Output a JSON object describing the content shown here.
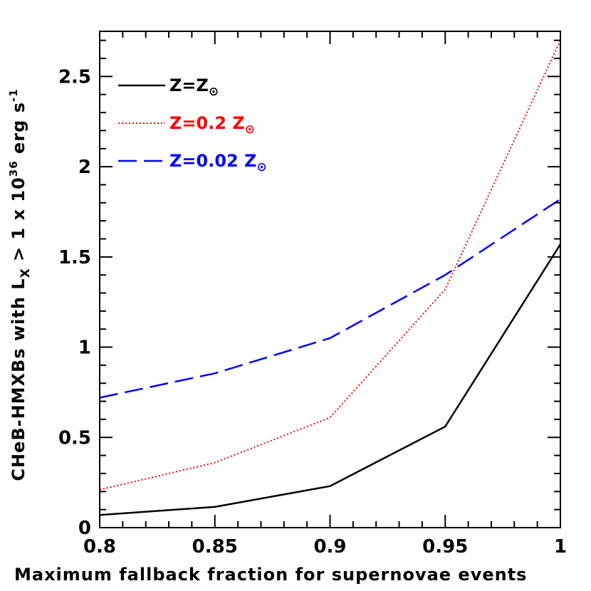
{
  "chart_data": {
    "type": "line",
    "xlabel": "Maximum fallback fraction for supernovae events",
    "ylabel_parts": {
      "prefix": "CHeB-HMXBs with L",
      "sub_x": "X",
      "middle": " > 1 x 10",
      "sup_36": "36",
      "suffix": " erg s",
      "sup_minus1": "-1"
    },
    "xlim": [
      0.8,
      1.0
    ],
    "ylim": [
      0,
      2.75
    ],
    "xticks": [
      {
        "value": 0.8,
        "label": "0.8"
      },
      {
        "value": 0.85,
        "label": "0.85"
      },
      {
        "value": 0.9,
        "label": "0.9"
      },
      {
        "value": 0.95,
        "label": "0.95"
      },
      {
        "value": 1.0,
        "label": "1"
      }
    ],
    "yticks": [
      {
        "value": 0,
        "label": "0"
      },
      {
        "value": 0.5,
        "label": "0.5"
      },
      {
        "value": 1,
        "label": "1"
      },
      {
        "value": 1.5,
        "label": "1.5"
      },
      {
        "value": 2,
        "label": "2"
      },
      {
        "value": 2.5,
        "label": "2.5"
      }
    ],
    "x_minor_step": 0.01,
    "y_minor_step": 0.1,
    "grid": false,
    "legend_position": "top-left",
    "series": [
      {
        "key": "solar",
        "legend": {
          "main": "Z=Z",
          "sun": "⊙"
        },
        "color": "#000000",
        "style": "solid",
        "x": [
          0.8,
          0.85,
          0.9,
          0.95,
          1.0
        ],
        "y": [
          0.07,
          0.115,
          0.23,
          0.56,
          1.57
        ]
      },
      {
        "key": "z02",
        "legend": {
          "main": "Z=0.2 Z",
          "sun": "⊙"
        },
        "color": "#ff0000",
        "style": "dotted",
        "x": [
          0.8,
          0.85,
          0.9,
          0.95,
          1.0
        ],
        "y": [
          0.21,
          0.36,
          0.61,
          1.32,
          2.7
        ]
      },
      {
        "key": "z002",
        "legend": {
          "main": "Z=0.02 Z",
          "sun": "⊙"
        },
        "color": "#0000ff",
        "style": "dashed",
        "x": [
          0.8,
          0.85,
          0.9,
          0.95,
          1.0
        ],
        "y": [
          0.72,
          0.855,
          1.05,
          1.4,
          1.82
        ]
      }
    ]
  }
}
